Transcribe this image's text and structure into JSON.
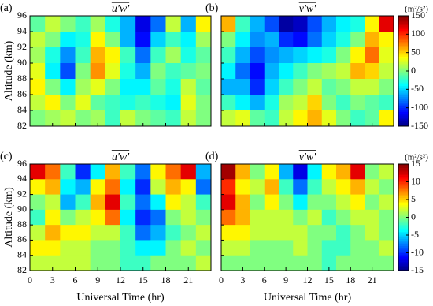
{
  "chart_data": [
    {
      "type": "heatmap",
      "panel": "(a)",
      "title": "u'w'",
      "ylabel": "Altitude (km)",
      "xlim": [
        0,
        24
      ],
      "ylim": [
        82,
        96
      ],
      "xticks": [
        0,
        3,
        6,
        9,
        12,
        15,
        18,
        21
      ],
      "yticks": [
        82,
        84,
        86,
        88,
        90,
        92,
        94,
        96
      ],
      "zlim": [
        -150,
        150
      ],
      "x": [
        1,
        3,
        5,
        7,
        9,
        11,
        13,
        15,
        17,
        19,
        21,
        23
      ],
      "y": [
        95,
        93,
        91,
        89,
        87,
        85,
        83
      ],
      "z": [
        [
          -10,
          20,
          0,
          -20,
          10,
          -30,
          -60,
          -120,
          -80,
          20,
          -60,
          40
        ],
        [
          20,
          0,
          -40,
          -30,
          40,
          0,
          -60,
          -110,
          -50,
          -20,
          -40,
          10
        ],
        [
          10,
          -30,
          -70,
          -20,
          60,
          40,
          -20,
          -80,
          -20,
          10,
          -30,
          -10
        ],
        [
          30,
          -40,
          -90,
          0,
          70,
          30,
          -30,
          -60,
          0,
          -20,
          -10,
          0
        ],
        [
          40,
          0,
          -40,
          10,
          30,
          0,
          -40,
          -40,
          -10,
          -30,
          20,
          -10
        ],
        [
          20,
          40,
          0,
          30,
          -10,
          -20,
          -30,
          -20,
          -30,
          -40,
          30,
          0
        ],
        [
          0,
          10,
          20,
          0,
          10,
          -20,
          20,
          0,
          -10,
          -20,
          20,
          0
        ]
      ]
    },
    {
      "type": "heatmap",
      "panel": "(b)",
      "title": "v'w'",
      "xlim": [
        0,
        24
      ],
      "ylim": [
        82,
        96
      ],
      "xticks": [
        0,
        3,
        6,
        9,
        12,
        15,
        18,
        21
      ],
      "yticks": [
        82,
        84,
        86,
        88,
        90,
        92,
        94,
        96
      ],
      "zlim": [
        -150,
        150
      ],
      "colorbar": {
        "label": "(m²/s²)",
        "ticks": [
          150,
          100,
          50,
          0,
          -50,
          -100,
          -150
        ]
      },
      "x": [
        1,
        3,
        5,
        7,
        9,
        11,
        13,
        15,
        17,
        19,
        21,
        23
      ],
      "y": [
        95,
        93,
        91,
        89,
        87,
        85,
        83
      ],
      "z": [
        [
          60,
          -20,
          -60,
          -90,
          -140,
          -130,
          -90,
          -60,
          -40,
          -30,
          40,
          120
        ],
        [
          0,
          -40,
          -70,
          -60,
          -100,
          -110,
          -80,
          -50,
          -30,
          0,
          60,
          40
        ],
        [
          -20,
          -60,
          -90,
          -70,
          -60,
          -50,
          -40,
          -30,
          0,
          40,
          80,
          30
        ],
        [
          -40,
          -80,
          -110,
          -60,
          -40,
          -20,
          0,
          10,
          20,
          60,
          50,
          20
        ],
        [
          -60,
          -60,
          -100,
          -50,
          -20,
          0,
          20,
          -10,
          0,
          20,
          20,
          0
        ],
        [
          -20,
          -40,
          -60,
          -30,
          10,
          20,
          50,
          0,
          -20,
          0,
          -10,
          -20
        ],
        [
          20,
          30,
          -10,
          -20,
          20,
          40,
          60,
          30,
          0,
          -20,
          -10,
          40
        ]
      ]
    },
    {
      "type": "heatmap",
      "panel": "(c)",
      "title": "u'w'",
      "ylabel": "Altitude (km)",
      "xlabel": "Universal Time (hr)",
      "xlim": [
        0,
        24
      ],
      "ylim": [
        82,
        96
      ],
      "xticks": [
        0,
        3,
        6,
        9,
        12,
        15,
        18,
        21
      ],
      "yticks": [
        82,
        84,
        86,
        88,
        90,
        92,
        94,
        96
      ],
      "zlim": [
        -15,
        15
      ],
      "x": [
        1,
        3,
        5,
        7,
        9,
        11,
        13,
        15,
        17,
        19,
        21,
        23
      ],
      "y": [
        95,
        93,
        91,
        89,
        87,
        85,
        83
      ],
      "z": [
        [
          12,
          8,
          -2,
          -10,
          -4,
          6,
          -2,
          -8,
          4,
          8,
          12,
          -6
        ],
        [
          4,
          6,
          -4,
          -6,
          4,
          8,
          -4,
          -10,
          2,
          6,
          4,
          -8
        ],
        [
          0,
          2,
          -6,
          -2,
          6,
          12,
          -2,
          -8,
          -4,
          4,
          2,
          -2
        ],
        [
          -2,
          4,
          0,
          2,
          4,
          8,
          -4,
          -10,
          -8,
          0,
          2,
          0
        ],
        [
          2,
          6,
          4,
          4,
          2,
          2,
          -2,
          -8,
          -6,
          -2,
          0,
          2
        ],
        [
          4,
          4,
          2,
          2,
          0,
          0,
          -2,
          -4,
          -4,
          0,
          2,
          0
        ],
        [
          2,
          2,
          2,
          2,
          0,
          0,
          -2,
          -2,
          0,
          0,
          0,
          2
        ]
      ]
    },
    {
      "type": "heatmap",
      "panel": "(d)",
      "title": "v'w'",
      "xlabel": "Universal Time (hr)",
      "xlim": [
        0,
        24
      ],
      "ylim": [
        82,
        96
      ],
      "xticks": [
        0,
        3,
        6,
        9,
        12,
        15,
        18,
        21
      ],
      "yticks": [
        82,
        84,
        86,
        88,
        90,
        92,
        94,
        96
      ],
      "zlim": [
        -15,
        15
      ],
      "colorbar": {
        "label": "(m²/s²)",
        "ticks": [
          15,
          10,
          5,
          0,
          -5,
          -10,
          -15
        ]
      },
      "x": [
        1,
        3,
        5,
        7,
        9,
        11,
        13,
        15,
        17,
        19,
        21,
        23
      ],
      "y": [
        95,
        93,
        91,
        89,
        87,
        85,
        83
      ],
      "z": [
        [
          14,
          6,
          0,
          4,
          -6,
          -12,
          -4,
          4,
          6,
          12,
          0,
          2
        ],
        [
          10,
          4,
          2,
          6,
          -2,
          -8,
          -2,
          2,
          4,
          6,
          2,
          0
        ],
        [
          12,
          6,
          0,
          4,
          0,
          -4,
          0,
          0,
          2,
          4,
          0,
          2
        ],
        [
          8,
          6,
          2,
          2,
          2,
          0,
          2,
          -2,
          0,
          2,
          2,
          0
        ],
        [
          4,
          4,
          2,
          2,
          2,
          2,
          0,
          0,
          -2,
          0,
          2,
          0
        ],
        [
          2,
          2,
          0,
          0,
          0,
          2,
          0,
          -2,
          -2,
          0,
          0,
          2
        ],
        [
          0,
          0,
          0,
          0,
          0,
          0,
          0,
          -2,
          0,
          0,
          0,
          0
        ]
      ]
    }
  ]
}
